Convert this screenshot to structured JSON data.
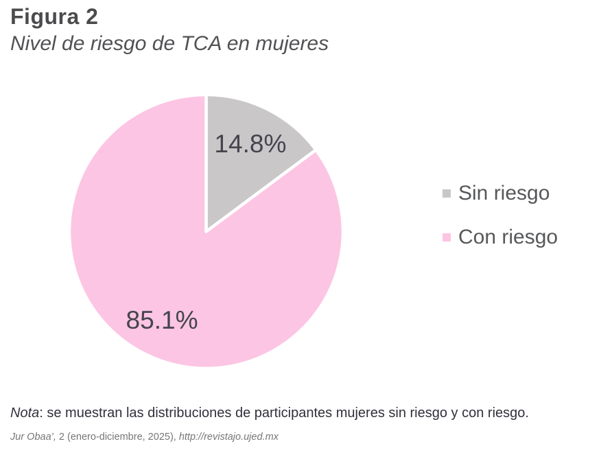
{
  "figure": {
    "title": "Figura 2",
    "subtitle": "Nivel de riesgo de TCA en mujeres"
  },
  "chart_data": {
    "type": "pie",
    "title": "Nivel de riesgo de TCA en mujeres",
    "categories": [
      "Sin riesgo",
      "Con riesgo"
    ],
    "values": [
      14.8,
      85.1
    ],
    "labels": [
      "14.8%",
      "85.1%"
    ],
    "colors": [
      "#c9c7c8",
      "#fcc5e3"
    ],
    "slice_border_color": "#ffffff",
    "label_color": "#45444e",
    "start_angle_deg": 0,
    "direction": "clockwise",
    "legend_position": "right",
    "grid": false
  },
  "legend": {
    "items": [
      {
        "label": "Sin riesgo",
        "color": "#c9c7c8"
      },
      {
        "label": "Con riesgo",
        "color": "#fcc5e3"
      }
    ]
  },
  "note": {
    "label": "Nota",
    "separator": ": ",
    "text": "se muestran las distribuciones de participantes mujeres sin riesgo y con riesgo."
  },
  "footer": {
    "journal": "Jur Obaa’,",
    "issue_info": " 2 (enero-diciembre, 2025), ",
    "url": "http://revistajo.ujed.mx"
  }
}
